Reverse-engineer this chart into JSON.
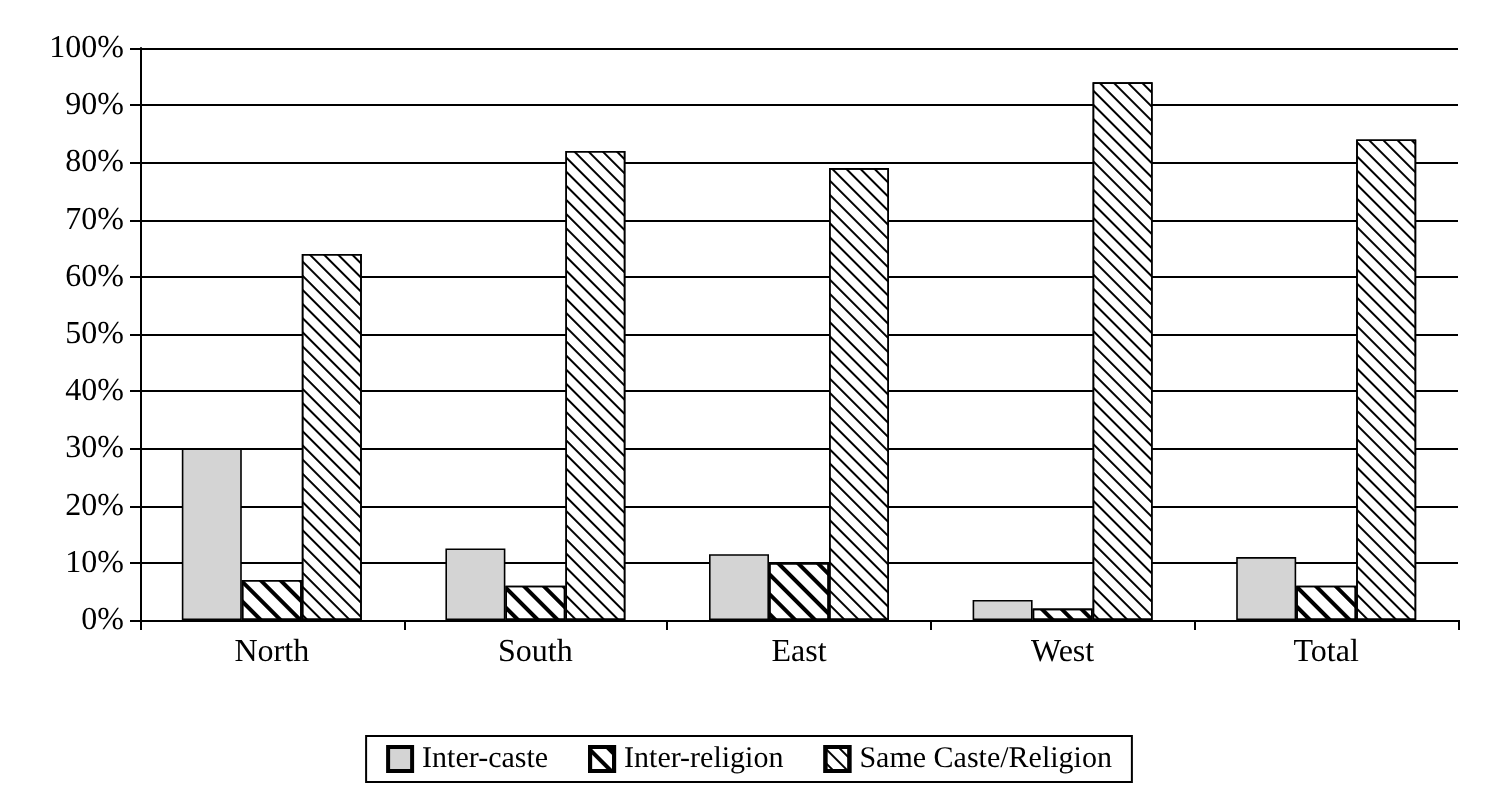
{
  "chart_data": {
    "type": "bar",
    "categories": [
      "North",
      "South",
      "East",
      "West",
      "Total"
    ],
    "series": [
      {
        "name": "Inter-caste",
        "color": "#d4d4d4",
        "values": [
          30,
          12.5,
          11.5,
          3.5,
          11
        ]
      },
      {
        "name": "Inter-religion",
        "color": "#ffffff",
        "values": [
          7,
          6,
          10,
          2,
          6
        ]
      },
      {
        "name": "Same Caste/Religion",
        "color": "#ffffff",
        "values": [
          64,
          82,
          79,
          94,
          84
        ]
      }
    ],
    "ylim": [
      0,
      100
    ],
    "yticks": [
      {
        "value": 0,
        "label": "0%"
      },
      {
        "value": 10,
        "label": "10%"
      },
      {
        "value": 20,
        "label": "20%"
      },
      {
        "value": 30,
        "label": "30%"
      },
      {
        "value": 40,
        "label": "40%"
      },
      {
        "value": 50,
        "label": "50%"
      },
      {
        "value": 60,
        "label": "60%"
      },
      {
        "value": 70,
        "label": "70%"
      },
      {
        "value": 80,
        "label": "80%"
      },
      {
        "value": 90,
        "label": "90%"
      },
      {
        "value": 100,
        "label": "100%"
      }
    ],
    "grid": "y",
    "legend": "bottom"
  }
}
